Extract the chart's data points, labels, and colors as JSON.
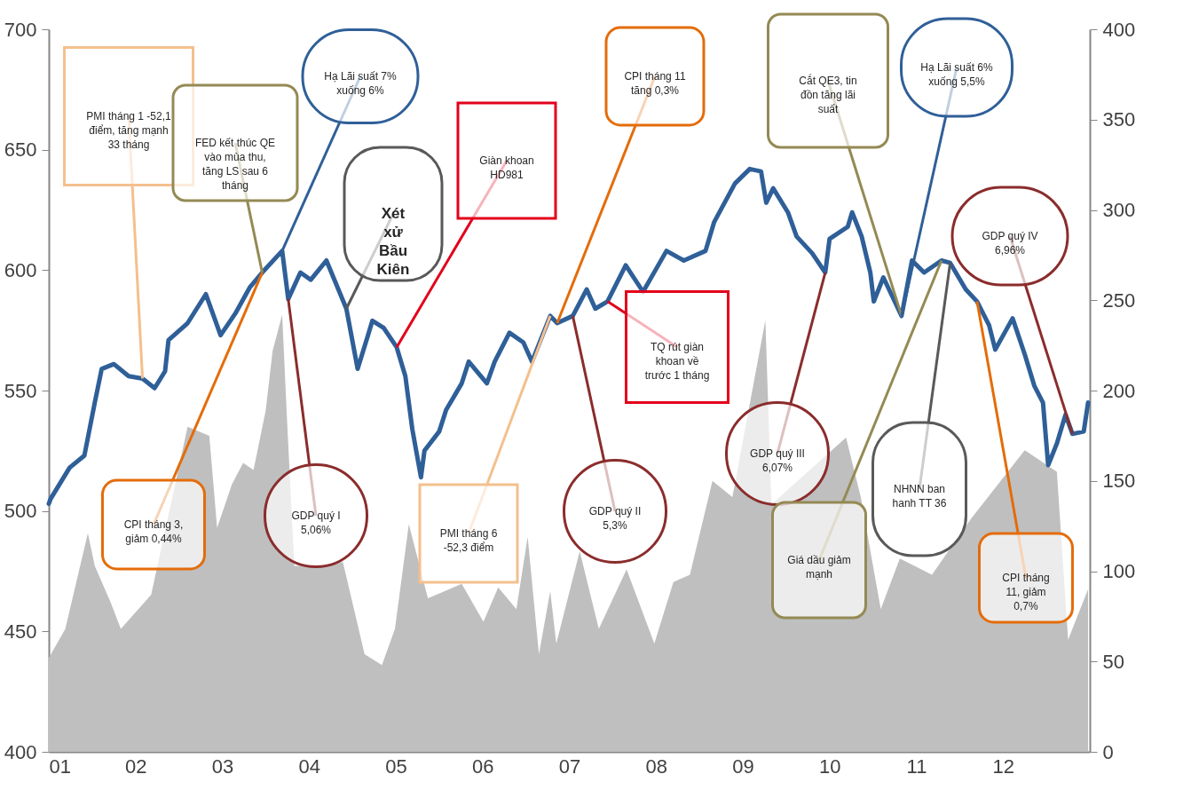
{
  "chart_data": {
    "type": "line",
    "xlim": [
      1,
      13
    ],
    "xticks": [
      {
        "value": 1,
        "label": "01"
      },
      {
        "value": 2,
        "label": "02"
      },
      {
        "value": 3,
        "label": "03"
      },
      {
        "value": 4,
        "label": "04"
      },
      {
        "value": 5,
        "label": "05"
      },
      {
        "value": 6,
        "label": "06"
      },
      {
        "value": 7,
        "label": "07"
      },
      {
        "value": 8,
        "label": "08"
      },
      {
        "value": 9,
        "label": "09"
      },
      {
        "value": 10,
        "label": "10"
      },
      {
        "value": 11,
        "label": "11"
      },
      {
        "value": 12,
        "label": "12"
      }
    ],
    "ylim": [
      400,
      700
    ],
    "yticks": [
      400,
      450,
      500,
      550,
      600,
      650,
      700
    ],
    "y2lim": [
      0,
      400
    ],
    "y2ticks": [
      0,
      50,
      100,
      150,
      200,
      250,
      300,
      350,
      400
    ],
    "series": [
      {
        "type": "area",
        "axis": "y2",
        "color": "#bfbfbf",
        "x": [
          1.0,
          1.19,
          1.45,
          1.53,
          1.71,
          1.83,
          2.18,
          2.6,
          2.85,
          2.94,
          3.11,
          3.24,
          3.36,
          3.5,
          3.58,
          3.69,
          3.75,
          3.83,
          4.05,
          4.39,
          4.64,
          4.84,
          4.99,
          5.15,
          5.37,
          5.76,
          6.01,
          6.18,
          6.39,
          6.52,
          6.65,
          6.78,
          6.85,
          7.12,
          7.34,
          7.66,
          7.98,
          8.2,
          8.39,
          8.65,
          8.88,
          9.26,
          9.33,
          10.19,
          10.36,
          10.59,
          10.81,
          11.18,
          11.63,
          12.25,
          12.62,
          12.75,
          12.98
        ],
        "values": [
          52,
          68,
          121,
          103,
          83,
          68,
          87,
          180,
          175,
          124,
          148,
          160,
          156,
          189,
          222,
          242,
          180,
          103,
          103,
          105,
          54,
          48,
          68,
          126,
          85,
          93,
          72,
          91,
          79,
          119,
          54,
          89,
          60,
          111,
          68,
          101,
          60,
          94,
          98,
          150,
          141,
          239,
          137,
          174,
          141,
          79,
          107,
          98,
          129,
          167,
          155,
          62,
          90
        ]
      },
      {
        "color": "#2f5f98",
        "x": [
          1.0,
          1.02,
          1.24,
          1.41,
          1.53,
          1.61,
          1.75,
          1.92,
          2.08,
          2.22,
          2.34,
          2.38,
          2.6,
          2.81,
          2.98,
          3.15,
          3.32,
          3.46,
          3.69,
          3.76,
          3.9,
          4.02,
          4.2,
          4.43,
          4.56,
          4.68,
          4.73,
          4.86,
          5.01,
          5.11,
          5.19,
          5.29,
          5.33,
          5.5,
          5.58,
          5.76,
          5.84,
          6.05,
          6.14,
          6.31,
          6.47,
          6.57,
          6.78,
          6.86,
          7.04,
          7.2,
          7.3,
          7.44,
          7.65,
          7.85,
          8.12,
          8.32,
          8.57,
          8.67,
          8.91,
          9.08,
          9.21,
          9.27,
          9.35,
          9.52,
          9.62,
          9.8,
          9.95,
          10.0,
          10.21,
          10.26,
          10.37,
          10.47,
          10.51,
          10.62,
          10.83,
          10.95,
          11.09,
          11.29,
          11.39,
          11.57,
          11.7,
          11.84,
          11.91,
          12.11,
          12.25,
          12.36,
          12.46,
          12.52,
          12.62,
          12.72,
          12.8,
          12.93,
          12.98
        ],
        "values": [
          503,
          505,
          518,
          523,
          545,
          559,
          561,
          556,
          555,
          551,
          558,
          571,
          578,
          590,
          573,
          582,
          593,
          599,
          608,
          588,
          599,
          596,
          604,
          584,
          559,
          573,
          579,
          576,
          568,
          556,
          534,
          514,
          525,
          533,
          542,
          553,
          562,
          553,
          562,
          574,
          570,
          562,
          581,
          578,
          581,
          592,
          584,
          587,
          602,
          591,
          608,
          604,
          608,
          620,
          636,
          642,
          641,
          628,
          634,
          624,
          614,
          607,
          599,
          613,
          618,
          624,
          614,
          599,
          587,
          597,
          581,
          604,
          599,
          604,
          603,
          592,
          587,
          577,
          567,
          580,
          565,
          552,
          545,
          519,
          528,
          540,
          532,
          533,
          545
        ]
      }
    ],
    "annotations": [
      {
        "text": "PMI tháng 1 -52,1 điểm, tăng mạnh 33 tháng",
        "x": 2.08,
        "y": 555
      },
      {
        "text": "FED kết thúc QE vào mùa thu, tăng LS sau 6 tháng",
        "x": 3.46,
        "y": 599
      },
      {
        "text": "Hạ Lãi suất 7% xuống 6%",
        "x": 3.69,
        "y": 608
      },
      {
        "text": "Xét xử Bầu Kiên",
        "x": 4.43,
        "y": 584
      },
      {
        "text": "Giàn khoan HD981",
        "x": 5.01,
        "y": 568
      },
      {
        "text": "CPI tháng 11 tăng 0,3%",
        "x": 6.86,
        "y": 578
      },
      {
        "text": "Cắt QE3, tin đồn tăng lãi suất",
        "x": 10.83,
        "y": 581
      },
      {
        "text": "Hạ Lãi suất 6% xuống 5,5%",
        "x": 10.83,
        "y": 581
      },
      {
        "text": "GDP quý IV 6,96%",
        "x": 12.8,
        "y": 532
      },
      {
        "text": "CPI tháng 3, giảm 0,44%",
        "x": 3.46,
        "y": 599
      },
      {
        "text": "GDP quý I 5,06%",
        "x": 3.76,
        "y": 588
      },
      {
        "text": "PMI tháng 6 -52,3 điểm",
        "x": 6.78,
        "y": 581
      },
      {
        "text": "GDP quý II 5,3%",
        "x": 7.04,
        "y": 581
      },
      {
        "text": "TQ rút giàn khoan về trước 1 tháng",
        "x": 7.44,
        "y": 587
      },
      {
        "text": "GDP quý III 6,07%",
        "x": 9.95,
        "y": 599
      },
      {
        "text": "Giá dầu giảm mạnh",
        "x": 11.29,
        "y": 604
      },
      {
        "text": "NHNN ban hanh TT 36",
        "x": 11.39,
        "y": 603
      },
      {
        "text": "CPI tháng 11, giảm 0,7%",
        "x": 11.7,
        "y": 587
      }
    ]
  }
}
